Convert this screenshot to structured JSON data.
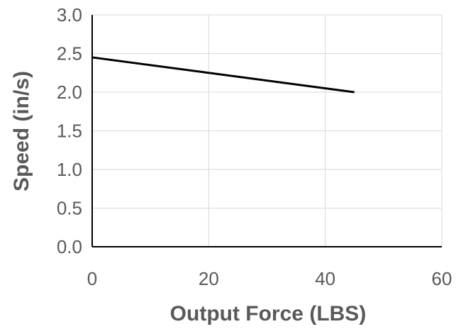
{
  "chart_data": {
    "type": "line",
    "xlabel": "Output Force (LBS)",
    "ylabel": "Speed (in/s)",
    "xlim": [
      0,
      60
    ],
    "ylim": [
      0,
      3.0
    ],
    "x_ticks": [
      "0",
      "20",
      "40",
      "60"
    ],
    "y_ticks": [
      "0.0",
      "0.5",
      "1.0",
      "1.5",
      "2.0",
      "2.5",
      "3.0"
    ],
    "grid": true,
    "series": [
      {
        "x": [
          0,
          45
        ],
        "values": [
          2.45,
          2.0
        ],
        "color": "#000000"
      }
    ]
  }
}
